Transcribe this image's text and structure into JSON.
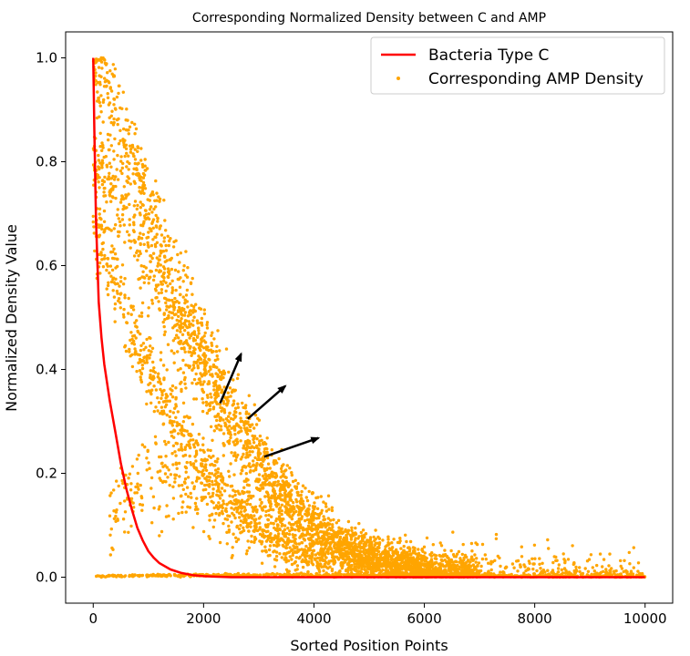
{
  "chart_data": {
    "type": "scatter",
    "title": "Corresponding Normalized Density between C and AMP",
    "xlabel": "Sorted Position Points",
    "ylabel": "Normalized Density Value",
    "xlim": [
      -500,
      10500
    ],
    "ylim": [
      -0.05,
      1.05
    ],
    "xticks": [
      {
        "value": 0,
        "label": "0"
      },
      {
        "value": 2000,
        "label": "2000"
      },
      {
        "value": 4000,
        "label": "4000"
      },
      {
        "value": 6000,
        "label": "6000"
      },
      {
        "value": 8000,
        "label": "8000"
      },
      {
        "value": 10000,
        "label": "10000"
      }
    ],
    "yticks": [
      {
        "value": 0.0,
        "label": "0.0"
      },
      {
        "value": 0.2,
        "label": "0.2"
      },
      {
        "value": 0.4,
        "label": "0.4"
      },
      {
        "value": 0.6,
        "label": "0.6"
      },
      {
        "value": 0.8,
        "label": "0.8"
      },
      {
        "value": 1.0,
        "label": "1.0"
      }
    ],
    "grid": false,
    "legend_position": "top-right",
    "series": [
      {
        "name": "Bacteria Type C",
        "kind": "line",
        "color": "#ff0000",
        "x": [
          0,
          20,
          50,
          100,
          150,
          200,
          300,
          400,
          500,
          600,
          700,
          800,
          900,
          1000,
          1100,
          1200,
          1400,
          1600,
          1800,
          2000,
          2200,
          2500,
          3000,
          4000,
          5000,
          6000,
          7000,
          8000,
          9000,
          10000
        ],
        "y": [
          1.0,
          0.86,
          0.69,
          0.53,
          0.46,
          0.41,
          0.34,
          0.28,
          0.22,
          0.17,
          0.13,
          0.095,
          0.07,
          0.05,
          0.037,
          0.027,
          0.015,
          0.008,
          0.004,
          0.002,
          0.001,
          0.0,
          0.0,
          0.0,
          0.0,
          0.0,
          0.0,
          0.0,
          0.0,
          0.0
        ]
      },
      {
        "name": "Corresponding AMP Density",
        "kind": "scatter",
        "color": "#ffa500",
        "bands": [
          {
            "x": [
              0,
              300,
              700,
              1000,
              1500,
              2000,
              2500,
              3000,
              3500,
              4000,
              4500,
              5000,
              5500,
              6000,
              6500,
              7000
            ],
            "y": [
              1.0,
              0.92,
              0.81,
              0.72,
              0.58,
              0.44,
              0.33,
              0.24,
              0.16,
              0.11,
              0.07,
              0.045,
              0.03,
              0.02,
              0.01,
              0.005
            ],
            "spread": 0.04,
            "count": 1400
          },
          {
            "x": [
              0,
              300,
              700,
              1000,
              1500,
              2000,
              2500,
              3000,
              3500,
              4000,
              4500,
              5000,
              5500,
              6000,
              6500,
              7000
            ],
            "y": [
              0.8,
              0.76,
              0.68,
              0.61,
              0.49,
              0.38,
              0.28,
              0.2,
              0.14,
              0.095,
              0.06,
              0.04,
              0.025,
              0.015,
              0.008,
              0.004
            ],
            "spread": 0.04,
            "count": 1400
          },
          {
            "x": [
              0,
              300,
              700,
              1000,
              1500,
              2000,
              2500,
              3000,
              3500,
              4000,
              4500,
              5000,
              5500,
              6000
            ],
            "y": [
              0.69,
              0.6,
              0.48,
              0.4,
              0.3,
              0.21,
              0.15,
              0.1,
              0.065,
              0.045,
              0.03,
              0.02,
              0.012,
              0.007
            ],
            "spread": 0.04,
            "count": 1100
          },
          {
            "x": [
              300,
              500,
              700,
              1000,
              1500,
              2000,
              2500,
              3000,
              3500,
              4000,
              5000,
              6000,
              7000,
              8000,
              9000,
              10000
            ],
            "y": [
              0.12,
              0.15,
              0.17,
              0.19,
              0.18,
              0.15,
              0.12,
              0.09,
              0.07,
              0.05,
              0.03,
              0.02,
              0.012,
              0.006,
              0.003,
              0.001
            ],
            "spread": 0.06,
            "count": 900
          },
          {
            "x": [
              0,
              2000,
              4000,
              6000,
              8000,
              10000
            ],
            "y": [
              0.002,
              0.004,
              0.004,
              0.003,
              0.002,
              0.001
            ],
            "spread": 0.003,
            "count": 600
          }
        ]
      }
    ],
    "annotations": [
      {
        "type": "arrow",
        "from": [
          2300,
          0.335
        ],
        "to": [
          2680,
          0.43
        ]
      },
      {
        "type": "arrow",
        "from": [
          2800,
          0.305
        ],
        "to": [
          3480,
          0.368
        ]
      },
      {
        "type": "arrow",
        "from": [
          3100,
          0.232
        ],
        "to": [
          4080,
          0.268
        ]
      }
    ]
  }
}
